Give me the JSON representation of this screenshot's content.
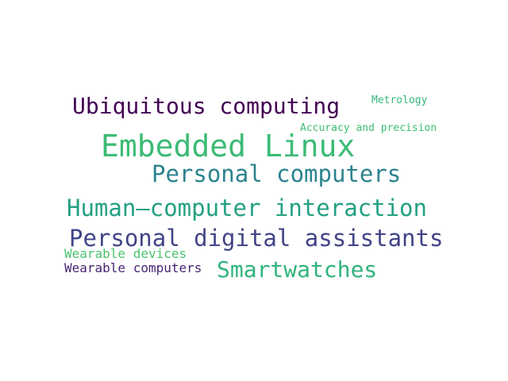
{
  "word_cloud": {
    "words": [
      {
        "text": "Ubiquitous computing",
        "color": "#440154"
      },
      {
        "text": "Metrology",
        "color": "#35b779"
      },
      {
        "text": "Accuracy and precision",
        "color": "#3fbc73"
      },
      {
        "text": "Embedded Linux",
        "color": "#3cbb75"
      },
      {
        "text": "Personal computers",
        "color": "#2c838e"
      },
      {
        "text": "Human–computer interaction",
        "color": "#23a083"
      },
      {
        "text": "Personal digital assistants",
        "color": "#414487"
      },
      {
        "text": "Wearable devices",
        "color": "#4ac16d"
      },
      {
        "text": "Wearable computers",
        "color": "#482475"
      },
      {
        "text": "Smartwatches",
        "color": "#2fb47c"
      }
    ]
  }
}
